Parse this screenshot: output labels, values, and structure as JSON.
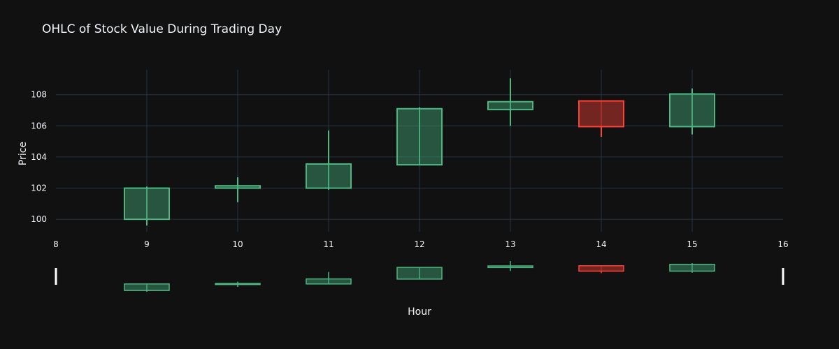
{
  "chart_data": {
    "type": "candlestick",
    "title": "OHLC of Stock Value During Trading Day",
    "xlabel": "Hour",
    "ylabel": "Price",
    "xlim": [
      8,
      16
    ],
    "ylim": [
      99.2,
      109.6
    ],
    "xticks": [
      8,
      9,
      10,
      11,
      12,
      13,
      14,
      15,
      16
    ],
    "yticks": [
      100,
      102,
      104,
      106,
      108
    ],
    "grid": true,
    "legend": "none",
    "range_slider": true,
    "colors": {
      "background": "#111111",
      "grid": "#283442",
      "text": "#f2f5fa",
      "increasing": "#3d9970",
      "increasing_line": "#4cb782",
      "decreasing": "#8b2a25",
      "decreasing_line": "#ff4136"
    },
    "candles": [
      {
        "x": 9,
        "open": 100.0,
        "high": 102.1,
        "low": 99.6,
        "close": 102.0
      },
      {
        "x": 10,
        "open": 102.0,
        "high": 102.7,
        "low": 101.1,
        "close": 102.15
      },
      {
        "x": 11,
        "open": 102.0,
        "high": 105.7,
        "low": 101.9,
        "close": 103.55
      },
      {
        "x": 12,
        "open": 103.5,
        "high": 107.2,
        "low": 103.5,
        "close": 107.1
      },
      {
        "x": 13,
        "open": 107.05,
        "high": 109.05,
        "low": 106.0,
        "close": 107.55
      },
      {
        "x": 14,
        "open": 107.6,
        "high": 107.6,
        "low": 105.3,
        "close": 105.95
      },
      {
        "x": 15,
        "open": 105.95,
        "high": 108.4,
        "low": 105.45,
        "close": 108.05
      }
    ]
  }
}
